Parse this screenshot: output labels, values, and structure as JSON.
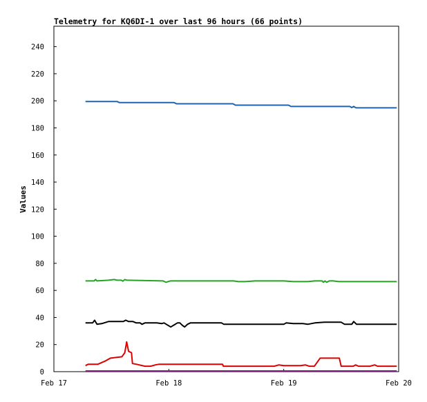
{
  "chart_data": {
    "type": "line",
    "title": "Telemetry for KQ6DI-1 over last 96 hours (66 points)",
    "xlabel": "",
    "ylabel": "Values",
    "xlim": [
      0,
      72
    ],
    "ylim": [
      0,
      250
    ],
    "x_ticks": [
      {
        "label": "Feb 17",
        "value": 0
      },
      {
        "label": "Feb 18",
        "value": 24
      },
      {
        "label": "Feb 19",
        "value": 48
      },
      {
        "label": "Feb 20",
        "value": 72
      }
    ],
    "y_ticks": [
      0,
      20,
      40,
      60,
      80,
      100,
      120,
      140,
      160,
      180,
      200,
      220,
      240
    ],
    "grid": false,
    "series": [
      {
        "color": "#1f63b0",
        "points": [
          [
            6.6,
            199.5
          ],
          [
            13.2,
            199.5
          ],
          [
            13.7,
            198.7
          ],
          [
            25.1,
            198.7
          ],
          [
            25.6,
            197.8
          ],
          [
            37.4,
            197.8
          ],
          [
            37.9,
            196.8
          ],
          [
            49.0,
            196.8
          ],
          [
            49.5,
            195.8
          ],
          [
            61.8,
            195.8
          ],
          [
            62.2,
            195.0
          ],
          [
            62.6,
            195.8
          ],
          [
            63.1,
            194.8
          ],
          [
            71.6,
            194.8
          ]
        ]
      },
      {
        "color": "#22a322",
        "points": [
          [
            6.6,
            67
          ],
          [
            8.4,
            67
          ],
          [
            8.7,
            68
          ],
          [
            9.0,
            67
          ],
          [
            11.4,
            67.5
          ],
          [
            12.6,
            68
          ],
          [
            13.2,
            67.5
          ],
          [
            14.1,
            67.5
          ],
          [
            14.4,
            66.8
          ],
          [
            14.8,
            68
          ],
          [
            15.3,
            67.5
          ],
          [
            22.8,
            67
          ],
          [
            23.4,
            66
          ],
          [
            24.3,
            67
          ],
          [
            37.5,
            67
          ],
          [
            38.5,
            66.5
          ],
          [
            40.0,
            66.5
          ],
          [
            42.0,
            67
          ],
          [
            48.0,
            67
          ],
          [
            50.0,
            66.5
          ],
          [
            53.0,
            66.5
          ],
          [
            54.5,
            67
          ],
          [
            56.0,
            67
          ],
          [
            56.3,
            66
          ],
          [
            56.6,
            67
          ],
          [
            57.0,
            66
          ],
          [
            57.5,
            67
          ],
          [
            58.3,
            67
          ],
          [
            59.5,
            66.5
          ],
          [
            71.6,
            66.5
          ]
        ]
      },
      {
        "color": "#000000",
        "points": [
          [
            6.6,
            36
          ],
          [
            8.1,
            36
          ],
          [
            8.5,
            38
          ],
          [
            9.0,
            35
          ],
          [
            10.0,
            35.5
          ],
          [
            11.4,
            37
          ],
          [
            14.5,
            37
          ],
          [
            15.0,
            38
          ],
          [
            15.6,
            37
          ],
          [
            16.5,
            37
          ],
          [
            17.2,
            36
          ],
          [
            18.0,
            36
          ],
          [
            18.4,
            35
          ],
          [
            19.0,
            36
          ],
          [
            21.5,
            36
          ],
          [
            22.5,
            35.5
          ],
          [
            23.0,
            36
          ],
          [
            24.4,
            33
          ],
          [
            25.8,
            36
          ],
          [
            26.3,
            36
          ],
          [
            26.9,
            34
          ],
          [
            27.3,
            33
          ],
          [
            27.9,
            35
          ],
          [
            28.5,
            36
          ],
          [
            35.0,
            36
          ],
          [
            35.5,
            35
          ],
          [
            48.0,
            35
          ],
          [
            48.5,
            36
          ],
          [
            50.0,
            35.5
          ],
          [
            52.0,
            35.5
          ],
          [
            53.0,
            35
          ],
          [
            54.5,
            36
          ],
          [
            56.5,
            36.5
          ],
          [
            60.0,
            36.5
          ],
          [
            60.7,
            35
          ],
          [
            62.2,
            35
          ],
          [
            62.6,
            37
          ],
          [
            63.2,
            35
          ],
          [
            71.6,
            35
          ]
        ]
      },
      {
        "color": "#dd0000",
        "points": [
          [
            6.6,
            4.5
          ],
          [
            7.2,
            5.5
          ],
          [
            9.2,
            5.5
          ],
          [
            10.8,
            8
          ],
          [
            11.8,
            10
          ],
          [
            14.2,
            11
          ],
          [
            14.8,
            14
          ],
          [
            15.2,
            22
          ],
          [
            15.6,
            15
          ],
          [
            16.2,
            14
          ],
          [
            16.4,
            6
          ],
          [
            17.2,
            5.5
          ],
          [
            19.0,
            4
          ],
          [
            20.2,
            4
          ],
          [
            21.2,
            5
          ],
          [
            22.0,
            5.5
          ],
          [
            35.2,
            5.5
          ],
          [
            35.4,
            4
          ],
          [
            46.0,
            4
          ],
          [
            47.0,
            5
          ],
          [
            48.0,
            4.5
          ],
          [
            51.5,
            4.5
          ],
          [
            52.5,
            5
          ],
          [
            53.3,
            4
          ],
          [
            54.4,
            4
          ],
          [
            55.6,
            10
          ],
          [
            59.6,
            10
          ],
          [
            60.0,
            4
          ],
          [
            62.5,
            4
          ],
          [
            63.0,
            5
          ],
          [
            63.6,
            4
          ],
          [
            66.0,
            4
          ],
          [
            67.0,
            5
          ],
          [
            67.6,
            4
          ],
          [
            71.6,
            4
          ]
        ]
      },
      {
        "color": "#7a1f7a",
        "points": [
          [
            6.6,
            0.5
          ],
          [
            71.6,
            0.5
          ]
        ]
      }
    ]
  }
}
